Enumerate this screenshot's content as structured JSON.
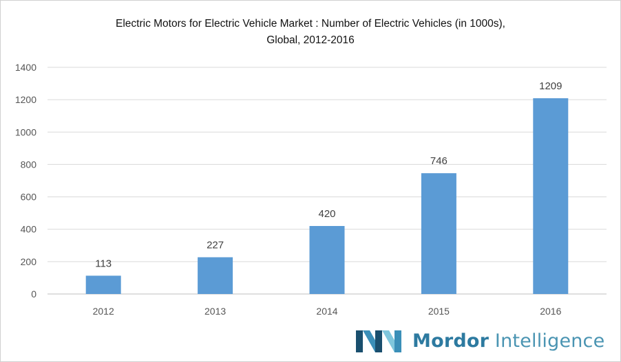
{
  "chart_data": {
    "type": "bar",
    "title_line1": "Electric Motors for Electric Vehicle Market : Number of  Electric Vehicles (in 1000s),",
    "title_line2": "Global, 2012-2016",
    "categories": [
      "2012",
      "2013",
      "2014",
      "2015",
      "2016"
    ],
    "values": [
      113,
      227,
      420,
      746,
      1209
    ],
    "ylim": [
      0,
      1400
    ],
    "yticks": [
      0,
      200,
      400,
      600,
      800,
      1000,
      1200,
      1400
    ],
    "grid": true,
    "bar_color": "#5b9bd5",
    "xlabel": "",
    "ylabel": ""
  },
  "brand": {
    "name_bold": "Mordor",
    "name_regular": "Intelligence",
    "logo_icon": "mordor-logo-icon",
    "colors": [
      "#1a4f6e",
      "#3b8fb8",
      "#7fc6dc"
    ]
  }
}
